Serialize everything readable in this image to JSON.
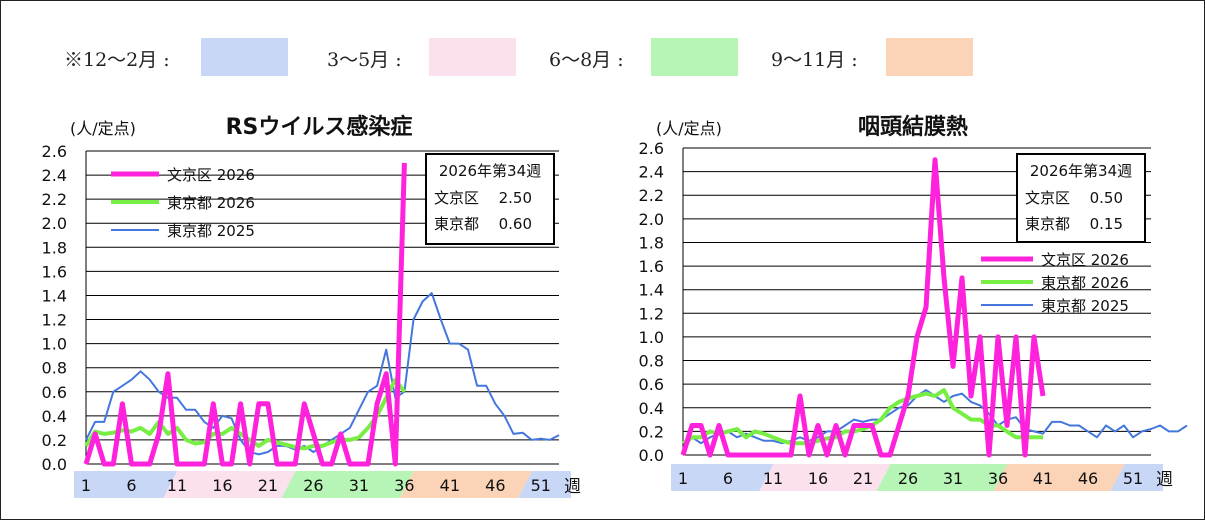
{
  "season_legend": [
    {
      "label": "※12〜2月 :",
      "color": "#c9d7f7"
    },
    {
      "label": "3〜5月 :",
      "color": "#fbe0ee"
    },
    {
      "label": "6〜8月 :",
      "color": "#b7f5b7"
    },
    {
      "label": "9〜11月 :",
      "color": "#fbd3b7"
    }
  ],
  "x_ticks": [
    "1",
    "6",
    "11",
    "16",
    "21",
    "26",
    "31",
    "36",
    "41",
    "46",
    "51"
  ],
  "x_unit": "週",
  "chart_data": [
    {
      "type": "line",
      "title": "RSウイルス感染症",
      "ylabel": "(人/定点)",
      "ylim": [
        0,
        2.6
      ],
      "yticks": [
        "0.0",
        "0.2",
        "0.4",
        "0.6",
        "0.8",
        "1.0",
        "1.2",
        "1.4",
        "1.6",
        "1.8",
        "2.0",
        "2.2",
        "2.4",
        "2.6"
      ],
      "legend_position": "top-left",
      "info_box": {
        "title": "2026年第34週",
        "rows": [
          {
            "name": "文京区",
            "value": "2.50"
          },
          {
            "name": "東京都",
            "value": "0.60"
          }
        ]
      },
      "series": [
        {
          "name": "文京区 2026",
          "color": "#ff22dd",
          "width": 5,
          "values": [
            0,
            0.25,
            0,
            0,
            0.5,
            0,
            0,
            0,
            0.25,
            0.75,
            0,
            0,
            0,
            0,
            0.5,
            0,
            0,
            0.5,
            0,
            0.5,
            0.5,
            0,
            0,
            0,
            0.5,
            0.25,
            0,
            0,
            0.25,
            0,
            0,
            0,
            0.5,
            0.75,
            0,
            2.5
          ]
        },
        {
          "name": "東京都 2026",
          "color": "#77ee44",
          "width": 4,
          "values": [
            0.15,
            0.27,
            0.25,
            0.26,
            0.28,
            0.27,
            0.3,
            0.25,
            0.35,
            0.25,
            0.3,
            0.2,
            0.17,
            0.18,
            0.25,
            0.25,
            0.3,
            0.25,
            0.2,
            0.15,
            0.2,
            0.18,
            0.16,
            0.14,
            0.13,
            0.15,
            0.15,
            0.18,
            0.2,
            0.2,
            0.22,
            0.3,
            0.4,
            0.55,
            0.7,
            0.6
          ]
        },
        {
          "name": "東京都 2025",
          "color": "#4477dd",
          "width": 2,
          "values": [
            0.2,
            0.35,
            0.35,
            0.6,
            0.65,
            0.7,
            0.77,
            0.7,
            0.6,
            0.55,
            0.55,
            0.45,
            0.45,
            0.35,
            0.3,
            0.4,
            0.38,
            0.2,
            0.1,
            0.08,
            0.1,
            0.15,
            0.15,
            0.12,
            0.15,
            0.1,
            0.15,
            0.2,
            0.25,
            0.3,
            0.45,
            0.6,
            0.65,
            0.95,
            0.55,
            0.6,
            1.2,
            1.35,
            1.42,
            1.2,
            1.0,
            1.0,
            0.95,
            0.65,
            0.65,
            0.5,
            0.4,
            0.25,
            0.26,
            0.2,
            0.21,
            0.2,
            0.24
          ]
        }
      ]
    },
    {
      "type": "line",
      "title": "咽頭結膜熱",
      "ylabel": "(人/定点)",
      "ylim": [
        0,
        2.6
      ],
      "yticks": [
        "0.0",
        "0.2",
        "0.4",
        "0.6",
        "0.8",
        "1.0",
        "1.2",
        "1.4",
        "1.6",
        "1.8",
        "2.0",
        "2.2",
        "2.4",
        "2.6"
      ],
      "legend_position": "middle-right",
      "info_box": {
        "title": "2026年第34週",
        "rows": [
          {
            "name": "文京区",
            "value": "0.50"
          },
          {
            "name": "東京都",
            "value": "0.15"
          }
        ]
      },
      "series": [
        {
          "name": "文京区 2026",
          "color": "#ff22dd",
          "width": 5,
          "values": [
            0,
            0.25,
            0.25,
            0,
            0.25,
            0,
            0,
            0,
            0,
            0,
            0,
            0,
            0,
            0.5,
            0,
            0.25,
            0,
            0.25,
            0,
            0.25,
            0.25,
            0.25,
            0,
            0,
            0.25,
            0.5,
            1.0,
            1.25,
            2.5,
            1.5,
            0.75,
            1.5,
            0.5,
            1.0,
            0,
            1.0,
            0.25,
            1.0,
            0,
            1.0,
            0.5
          ]
        },
        {
          "name": "東京都 2026",
          "color": "#77ee44",
          "width": 4,
          "values": [
            0.1,
            0.15,
            0.15,
            0.2,
            0.18,
            0.2,
            0.22,
            0.15,
            0.2,
            0.18,
            0.15,
            0.12,
            0.1,
            0.1,
            0.1,
            0.12,
            0.14,
            0.15,
            0.2,
            0.2,
            0.22,
            0.25,
            0.3,
            0.4,
            0.45,
            0.48,
            0.5,
            0.52,
            0.5,
            0.55,
            0.4,
            0.35,
            0.3,
            0.3,
            0.25,
            0.25,
            0.2,
            0.15,
            0.15,
            0.15,
            0.15
          ]
        },
        {
          "name": "東京都 2025",
          "color": "#4477dd",
          "width": 2,
          "values": [
            0.05,
            0.15,
            0.1,
            0.15,
            0.18,
            0.2,
            0.15,
            0.18,
            0.15,
            0.12,
            0.12,
            0.1,
            0.12,
            0.15,
            0.12,
            0.15,
            0.2,
            0.2,
            0.25,
            0.3,
            0.28,
            0.3,
            0.3,
            0.35,
            0.4,
            0.42,
            0.5,
            0.55,
            0.5,
            0.45,
            0.5,
            0.52,
            0.45,
            0.42,
            0.35,
            0.25,
            0.3,
            0.32,
            0.22,
            0.2,
            0.18,
            0.28,
            0.28,
            0.25,
            0.25,
            0.2,
            0.15,
            0.25,
            0.2,
            0.25,
            0.15,
            0.2,
            0.22,
            0.25,
            0.2,
            0.2,
            0.25
          ]
        }
      ]
    }
  ]
}
